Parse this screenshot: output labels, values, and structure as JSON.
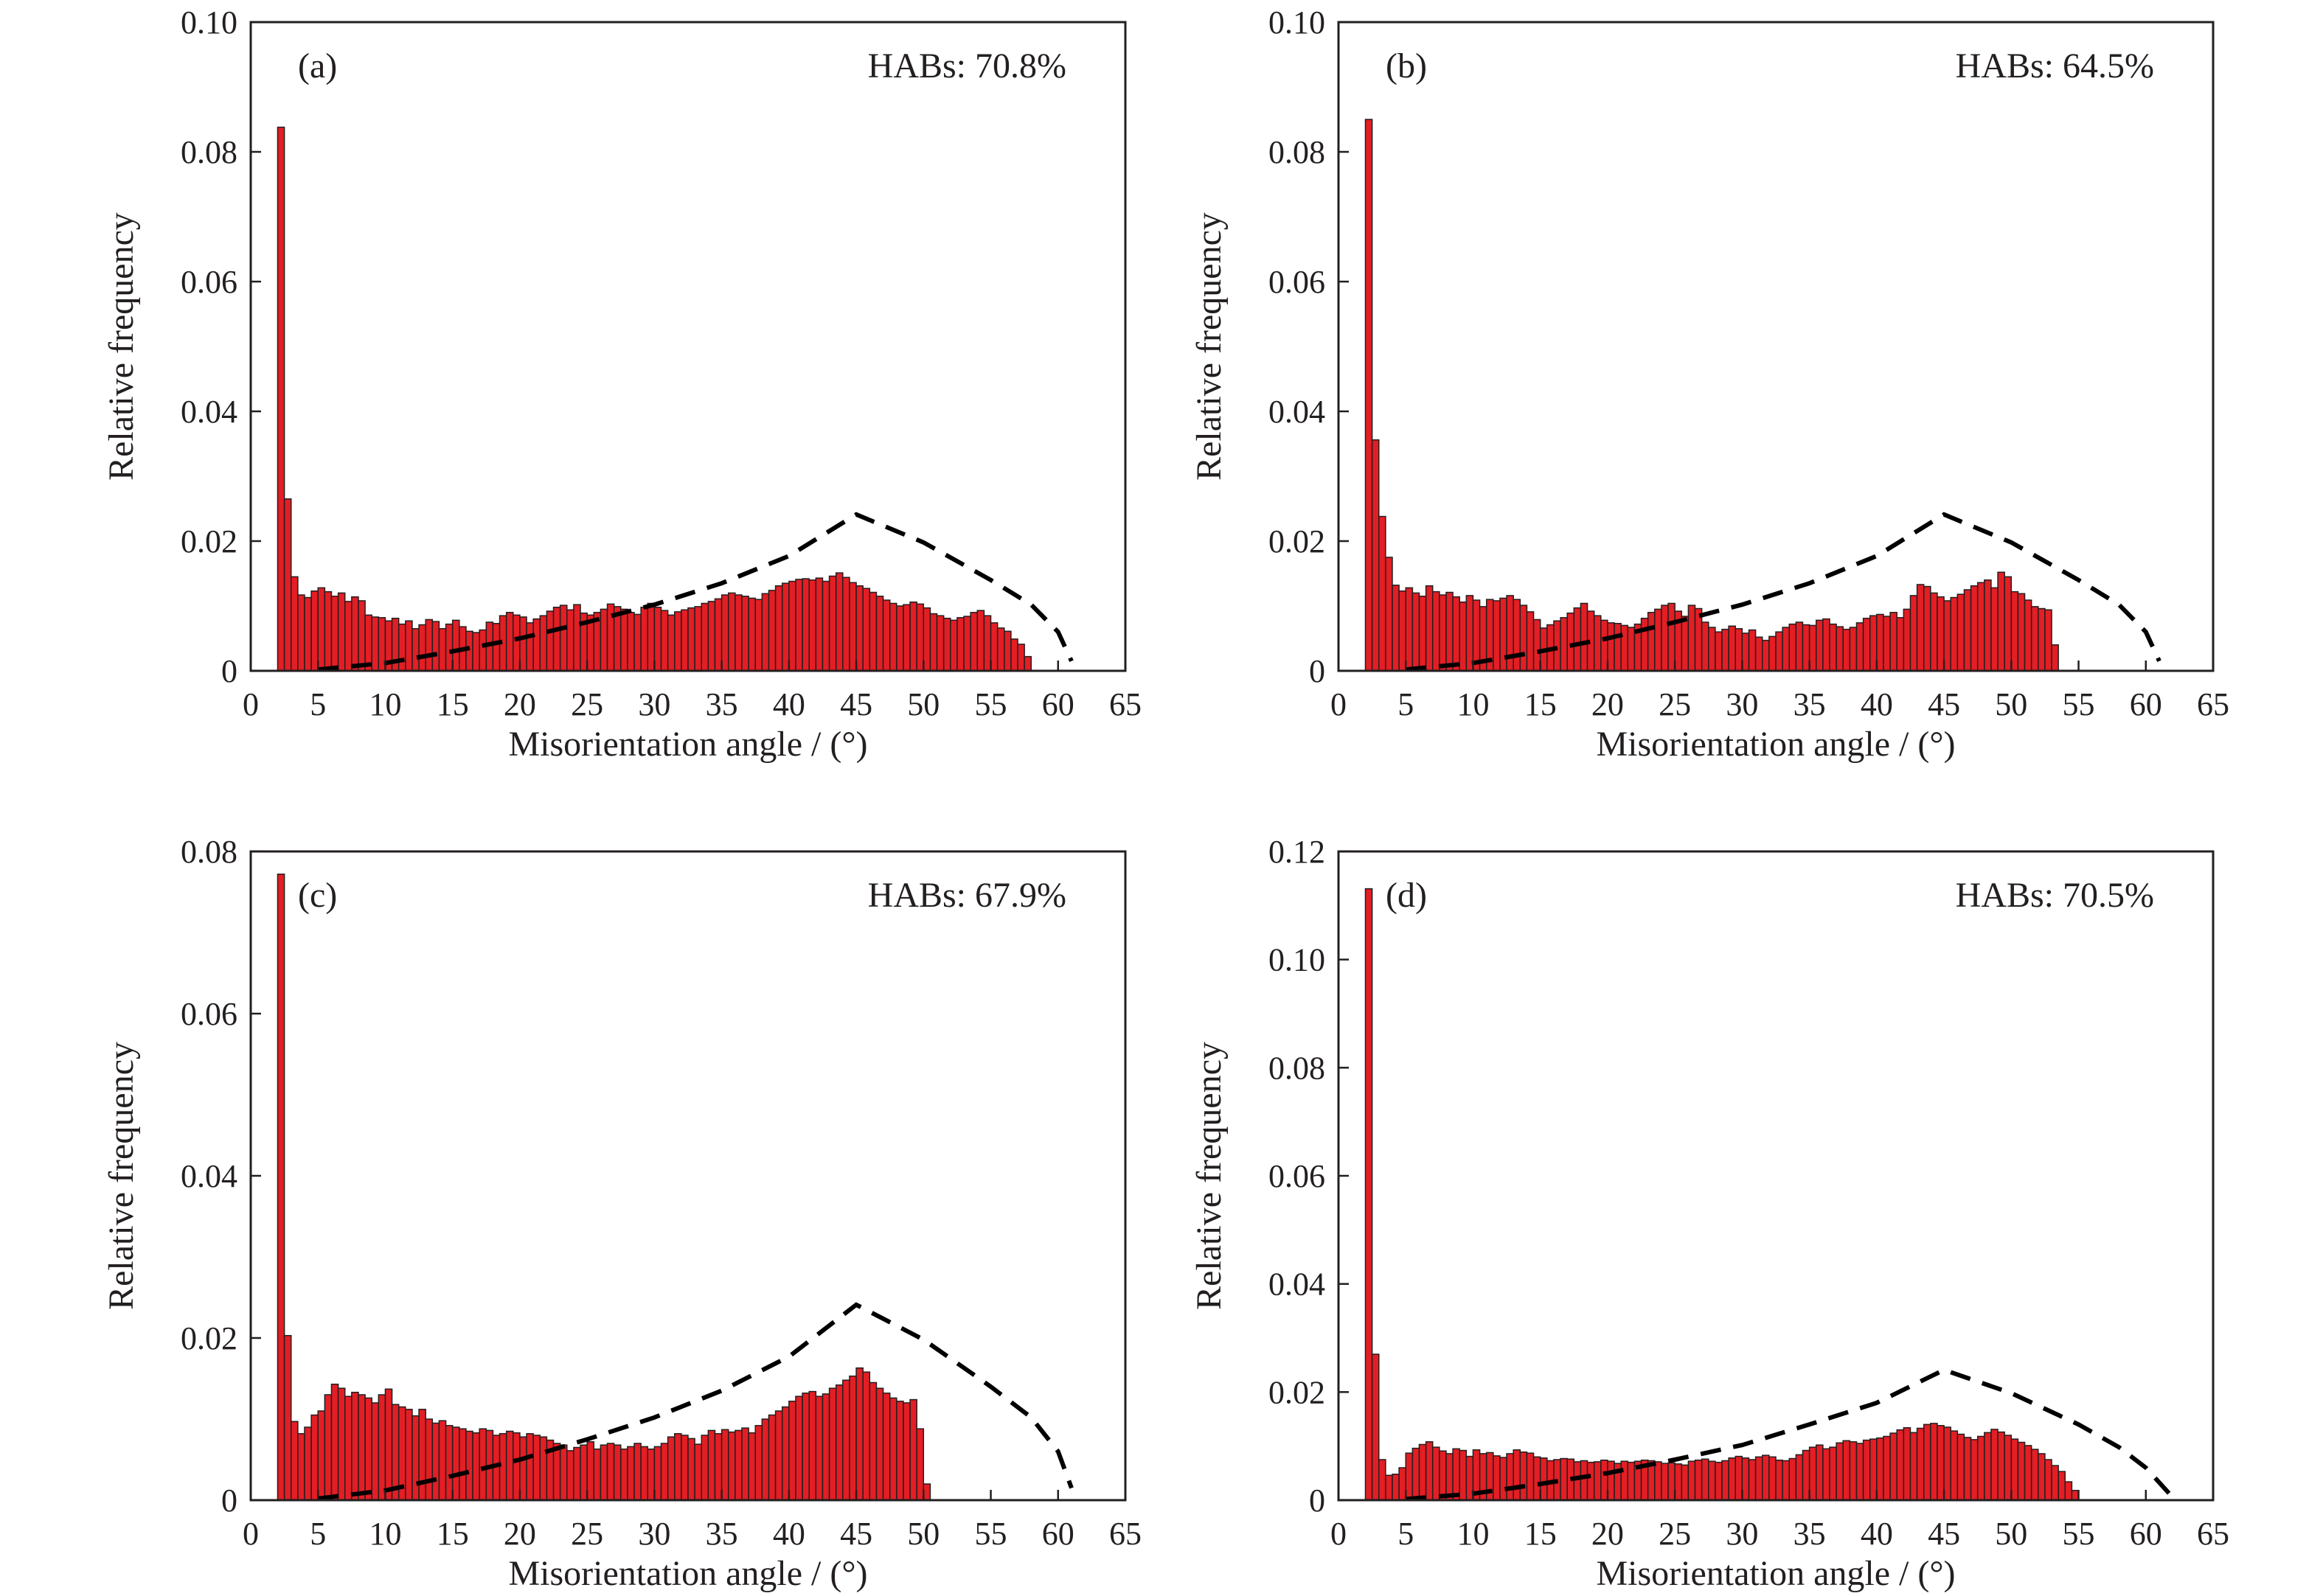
{
  "colors": {
    "bar_fill": "#e31e24",
    "bar_edge": "#231f20",
    "curve": "#000000",
    "axis": "#231f20"
  },
  "chart_data": [
    {
      "type": "bar",
      "panel_label": "(a)",
      "annotation": "HABs: 70.8%",
      "xlabel": "Misorientation angle / (°)",
      "ylabel": "Relative frequency",
      "xlim": [
        0,
        65
      ],
      "ylim": [
        0,
        0.1
      ],
      "x_ticks": [
        0,
        5,
        10,
        15,
        20,
        25,
        30,
        35,
        40,
        45,
        50,
        55,
        60,
        65
      ],
      "y_ticks": [
        0,
        0.02,
        0.04,
        0.06,
        0.08,
        0.1
      ],
      "y_tick_labels": [
        "0",
        "0.02",
        "0.04",
        "0.06",
        "0.08",
        "0.10"
      ],
      "bin_start": 2,
      "bin_width": 0.5,
      "values": [
        0.0838,
        0.0265,
        0.0145,
        0.0117,
        0.0113,
        0.0123,
        0.0128,
        0.0122,
        0.0115,
        0.012,
        0.0107,
        0.0114,
        0.0108,
        0.0086,
        0.0083,
        0.0082,
        0.0077,
        0.0081,
        0.0072,
        0.0077,
        0.0065,
        0.0071,
        0.0079,
        0.0076,
        0.0065,
        0.0072,
        0.0078,
        0.0068,
        0.0061,
        0.0059,
        0.0063,
        0.0075,
        0.0073,
        0.0085,
        0.009,
        0.0086,
        0.0083,
        0.0074,
        0.008,
        0.0085,
        0.0092,
        0.0098,
        0.0101,
        0.0094,
        0.0102,
        0.0089,
        0.0086,
        0.009,
        0.0095,
        0.0103,
        0.0099,
        0.0095,
        0.009,
        0.0087,
        0.0098,
        0.0104,
        0.0098,
        0.0093,
        0.0086,
        0.0091,
        0.0094,
        0.0097,
        0.0099,
        0.0104,
        0.0107,
        0.0111,
        0.0117,
        0.012,
        0.0117,
        0.0115,
        0.0112,
        0.011,
        0.0119,
        0.0124,
        0.0131,
        0.0135,
        0.0138,
        0.0141,
        0.0142,
        0.014,
        0.0143,
        0.0138,
        0.0146,
        0.0151,
        0.0144,
        0.0136,
        0.0131,
        0.0127,
        0.0121,
        0.0115,
        0.0109,
        0.0104,
        0.01,
        0.0102,
        0.0106,
        0.0103,
        0.0097,
        0.0088,
        0.0085,
        0.0081,
        0.0078,
        0.0082,
        0.0084,
        0.009,
        0.0093,
        0.0085,
        0.0074,
        0.0066,
        0.0061,
        0.0049,
        0.0041,
        0.0022
      ],
      "mackenzie_x": [
        5,
        10,
        15,
        20,
        25,
        30,
        35,
        40,
        45,
        50,
        55,
        58,
        60,
        61
      ],
      "mackenzie_y": [
        0.0002,
        0.0012,
        0.003,
        0.005,
        0.0075,
        0.0102,
        0.0135,
        0.0177,
        0.0241,
        0.0198,
        0.014,
        0.0102,
        0.006,
        0.0015
      ]
    },
    {
      "type": "bar",
      "panel_label": "(b)",
      "annotation": "HABs: 64.5%",
      "xlabel": "Misorientation angle / (°)",
      "ylabel": "Relative frequency",
      "xlim": [
        0,
        65
      ],
      "ylim": [
        0,
        0.1
      ],
      "x_ticks": [
        0,
        5,
        10,
        15,
        20,
        25,
        30,
        35,
        40,
        45,
        50,
        55,
        60,
        65
      ],
      "y_ticks": [
        0,
        0.02,
        0.04,
        0.06,
        0.08,
        0.1
      ],
      "y_tick_labels": [
        "0",
        "0.02",
        "0.04",
        "0.06",
        "0.08",
        "0.10"
      ],
      "bin_start": 2,
      "bin_width": 0.5,
      "values": [
        0.085,
        0.0356,
        0.0238,
        0.0175,
        0.0132,
        0.0123,
        0.0128,
        0.012,
        0.0115,
        0.0131,
        0.0122,
        0.0117,
        0.0121,
        0.0114,
        0.0106,
        0.0116,
        0.0109,
        0.0099,
        0.011,
        0.0108,
        0.0112,
        0.0116,
        0.011,
        0.0101,
        0.0091,
        0.0079,
        0.0066,
        0.0071,
        0.0077,
        0.0082,
        0.0089,
        0.0097,
        0.0104,
        0.0092,
        0.0085,
        0.0078,
        0.0074,
        0.0073,
        0.007,
        0.0067,
        0.0072,
        0.0081,
        0.009,
        0.0095,
        0.0101,
        0.0104,
        0.0092,
        0.0084,
        0.0101,
        0.0096,
        0.0075,
        0.0067,
        0.006,
        0.0064,
        0.0069,
        0.0065,
        0.0058,
        0.0063,
        0.0052,
        0.0047,
        0.0053,
        0.006,
        0.0067,
        0.0072,
        0.0075,
        0.0071,
        0.007,
        0.0078,
        0.008,
        0.0072,
        0.0068,
        0.0064,
        0.0067,
        0.0074,
        0.0081,
        0.0085,
        0.0087,
        0.0084,
        0.009,
        0.0082,
        0.0095,
        0.0116,
        0.0133,
        0.013,
        0.012,
        0.0114,
        0.0108,
        0.0113,
        0.0118,
        0.0125,
        0.0131,
        0.0136,
        0.014,
        0.0128,
        0.0152,
        0.0145,
        0.0122,
        0.0119,
        0.0109,
        0.0099,
        0.0096,
        0.0094,
        0.004
      ],
      "mackenzie_x": [
        5,
        10,
        15,
        20,
        25,
        30,
        35,
        40,
        45,
        50,
        55,
        58,
        60,
        61
      ],
      "mackenzie_y": [
        0.0002,
        0.0012,
        0.003,
        0.005,
        0.0075,
        0.0102,
        0.0135,
        0.0177,
        0.0241,
        0.0198,
        0.014,
        0.0102,
        0.006,
        0.0015
      ]
    },
    {
      "type": "bar",
      "panel_label": "(c)",
      "annotation": "HABs: 67.9%",
      "xlabel": "Misorientation angle / (°)",
      "ylabel": "Relative frequency",
      "xlim": [
        0,
        65
      ],
      "ylim": [
        0,
        0.08
      ],
      "x_ticks": [
        0,
        5,
        10,
        15,
        20,
        25,
        30,
        35,
        40,
        45,
        50,
        55,
        60,
        65
      ],
      "y_ticks": [
        0,
        0.02,
        0.04,
        0.06,
        0.08
      ],
      "y_tick_labels": [
        "0",
        "0.02",
        "0.04",
        "0.06",
        "0.08"
      ],
      "bin_start": 2,
      "bin_width": 0.5,
      "values": [
        0.0772,
        0.0203,
        0.0097,
        0.0082,
        0.009,
        0.0105,
        0.011,
        0.013,
        0.0143,
        0.0138,
        0.0128,
        0.0133,
        0.013,
        0.0126,
        0.012,
        0.013,
        0.0137,
        0.0118,
        0.0115,
        0.0112,
        0.0104,
        0.0112,
        0.01,
        0.0095,
        0.0098,
        0.0092,
        0.009,
        0.0088,
        0.0085,
        0.0083,
        0.0088,
        0.0086,
        0.008,
        0.0082,
        0.0085,
        0.0083,
        0.0078,
        0.0082,
        0.008,
        0.0078,
        0.0074,
        0.007,
        0.0068,
        0.0061,
        0.0065,
        0.0068,
        0.0072,
        0.0063,
        0.0068,
        0.007,
        0.0068,
        0.0063,
        0.0066,
        0.007,
        0.0066,
        0.0063,
        0.0066,
        0.007,
        0.0078,
        0.0082,
        0.008,
        0.0076,
        0.0069,
        0.008,
        0.0086,
        0.0082,
        0.0087,
        0.0084,
        0.0086,
        0.0089,
        0.0083,
        0.0092,
        0.01,
        0.0105,
        0.011,
        0.0115,
        0.0122,
        0.0128,
        0.0132,
        0.0134,
        0.0128,
        0.0131,
        0.0138,
        0.0142,
        0.0148,
        0.0153,
        0.0163,
        0.0158,
        0.0145,
        0.0138,
        0.0132,
        0.0126,
        0.0122,
        0.012,
        0.0124,
        0.0088,
        0.002
      ],
      "mackenzie_x": [
        5,
        10,
        15,
        20,
        25,
        30,
        35,
        40,
        45,
        50,
        55,
        58,
        60,
        61
      ],
      "mackenzie_y": [
        0.0002,
        0.0012,
        0.003,
        0.005,
        0.0075,
        0.0102,
        0.0135,
        0.0177,
        0.0241,
        0.0198,
        0.014,
        0.0102,
        0.006,
        0.0015
      ]
    },
    {
      "type": "bar",
      "panel_label": "(d)",
      "annotation": "HABs: 70.5%",
      "xlabel": "Misorientation angle / (°)",
      "ylabel": "Relative frequency",
      "xlim": [
        0,
        65
      ],
      "ylim": [
        0,
        0.12
      ],
      "x_ticks": [
        0,
        5,
        10,
        15,
        20,
        25,
        30,
        35,
        40,
        45,
        50,
        55,
        60,
        65
      ],
      "y_ticks": [
        0,
        0.02,
        0.04,
        0.06,
        0.08,
        0.1,
        0.12
      ],
      "y_tick_labels": [
        "0",
        "0.02",
        "0.04",
        "0.06",
        "0.08",
        "0.10",
        "0.12"
      ],
      "bin_start": 2,
      "bin_width": 0.5,
      "values": [
        0.1131,
        0.027,
        0.0075,
        0.0046,
        0.0048,
        0.006,
        0.0087,
        0.0096,
        0.0103,
        0.0108,
        0.0098,
        0.0091,
        0.0086,
        0.0095,
        0.0092,
        0.0081,
        0.0093,
        0.0086,
        0.0088,
        0.0082,
        0.0079,
        0.0086,
        0.0093,
        0.0089,
        0.0087,
        0.008,
        0.0078,
        0.0073,
        0.0075,
        0.0077,
        0.0076,
        0.0071,
        0.0073,
        0.007,
        0.0071,
        0.0074,
        0.0072,
        0.0068,
        0.0072,
        0.007,
        0.0072,
        0.0074,
        0.0073,
        0.0071,
        0.0068,
        0.0069,
        0.0067,
        0.0065,
        0.0072,
        0.0074,
        0.0076,
        0.0072,
        0.007,
        0.0073,
        0.0078,
        0.0081,
        0.0078,
        0.0075,
        0.008,
        0.0083,
        0.008,
        0.0074,
        0.0073,
        0.0077,
        0.0084,
        0.0092,
        0.0098,
        0.0102,
        0.0095,
        0.0098,
        0.0106,
        0.011,
        0.0108,
        0.0105,
        0.0111,
        0.0113,
        0.0115,
        0.0118,
        0.0124,
        0.013,
        0.0134,
        0.0125,
        0.0133,
        0.014,
        0.0142,
        0.0138,
        0.0135,
        0.0128,
        0.0122,
        0.0116,
        0.0112,
        0.0118,
        0.0125,
        0.0131,
        0.0126,
        0.012,
        0.0113,
        0.0107,
        0.0101,
        0.0094,
        0.0086,
        0.0075,
        0.0064,
        0.0053,
        0.0034,
        0.0018
      ],
      "mackenzie_x": [
        5,
        10,
        15,
        20,
        25,
        30,
        35,
        40,
        45,
        50,
        55,
        58,
        60,
        62
      ],
      "mackenzie_y": [
        0.0002,
        0.0012,
        0.003,
        0.005,
        0.0075,
        0.0102,
        0.014,
        0.018,
        0.0241,
        0.0198,
        0.014,
        0.0098,
        0.006,
        0.0005
      ]
    }
  ]
}
